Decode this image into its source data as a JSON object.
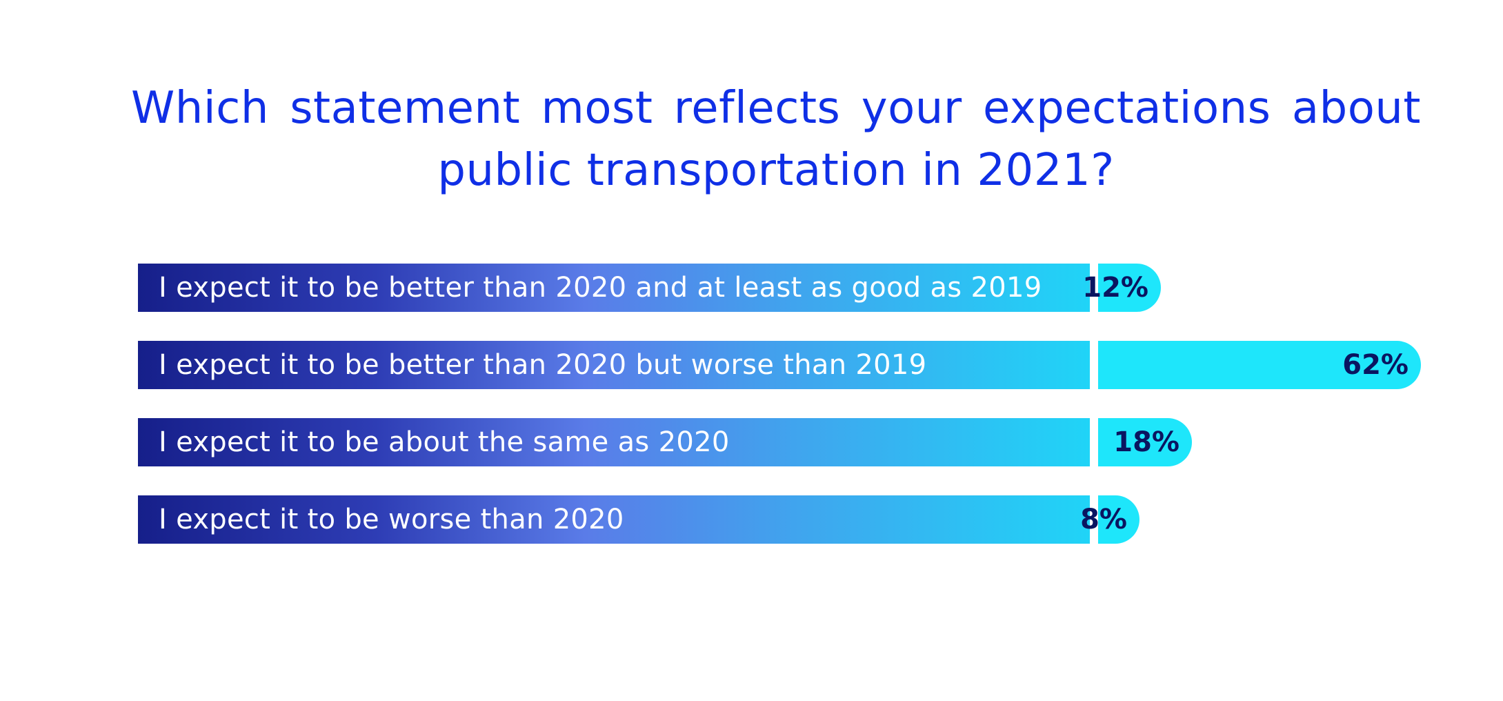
{
  "chart_data": {
    "type": "bar",
    "orientation": "horizontal",
    "title_lines": [
      "Which statement most reflects your expectations about",
      "public transportation in 2021?"
    ],
    "categories": [
      "I expect it to be better than 2020 and at least as good as 2019",
      "I expect it to be better than 2020 but worse than 2019",
      "I expect it to be about the same as 2020",
      "I expect it to be worse than 2020"
    ],
    "values": [
      12,
      62,
      18,
      8
    ],
    "value_labels": [
      "12%",
      "62%",
      "18%",
      "8%"
    ],
    "unit": "%",
    "grid": false,
    "legend": "none",
    "colors": {
      "title": "#0f2fe6",
      "value_bar": "#1ee6fb",
      "value_text": "#0a1560",
      "label_gradient_start": "#161f8a",
      "label_gradient_end": "#20d4f7"
    }
  }
}
